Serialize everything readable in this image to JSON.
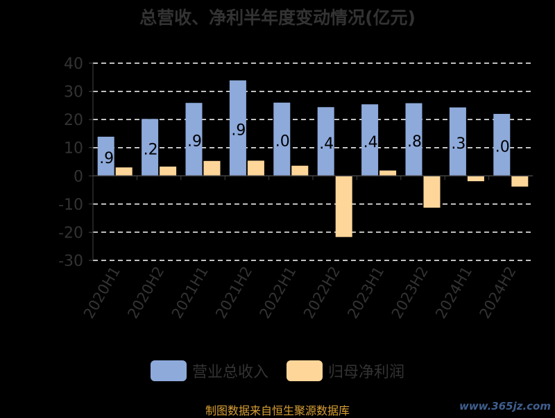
{
  "chart_data": {
    "type": "bar",
    "title": "总营收、净利半年度变动情况(亿元)",
    "categories": [
      "2020H1",
      "2020H2",
      "2021H1",
      "2021H2",
      "2022H1",
      "2022H2",
      "2023H1",
      "2023H2",
      "2024H1",
      "2024H2"
    ],
    "series": [
      {
        "name": "营业总收入",
        "color": "#8eaadb",
        "values": [
          13.9,
          20.2,
          25.9,
          33.9,
          26.0,
          24.4,
          25.4,
          25.8,
          24.3,
          22.0
        ],
        "labels": [
          ".9",
          ".2",
          ".9",
          ".9",
          ".0",
          ".4",
          ".4",
          ".8",
          ".3",
          ".0"
        ]
      },
      {
        "name": "归母净利润",
        "color": "#ffd699",
        "values": [
          3.0,
          3.3,
          5.3,
          5.4,
          3.6,
          -21.7,
          1.9,
          -11.3,
          -1.9,
          -3.8
        ]
      }
    ],
    "ylim": [
      -30,
      40
    ],
    "yticks": [
      40,
      30,
      20,
      10,
      0,
      -10,
      -20,
      -30
    ],
    "grid": true,
    "legend_position": "bottom"
  },
  "footer": {
    "source": "制图数据来自恒生聚源数据库"
  },
  "watermark": {
    "text": "www.365jz.com"
  }
}
